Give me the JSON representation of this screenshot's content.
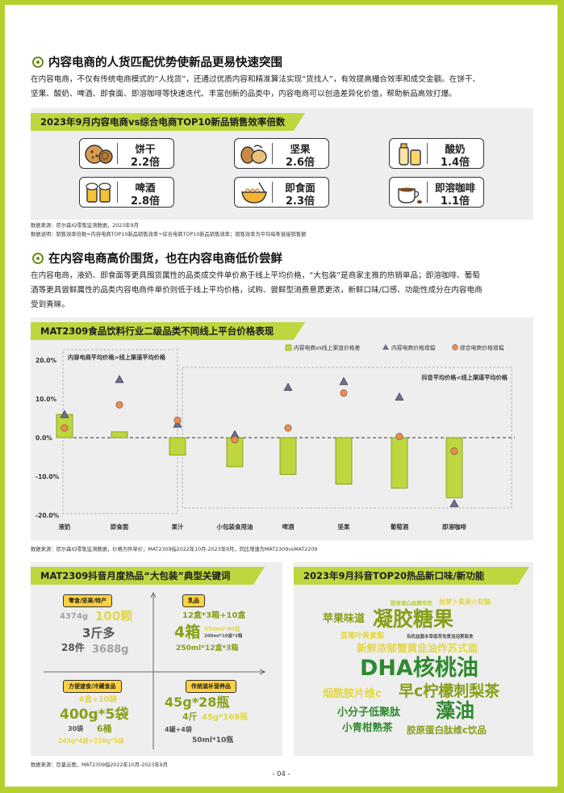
{
  "section1": {
    "title": "内容电商的人货匹配优势使新品更易快速突围",
    "para_line1": "在内容电商，不仅有传统电商模式的“人找货”，还通过优质内容和精准算法实现“货找人”，有效提高撮合效率和成交金额。在饼干、",
    "para_line2": "坚果、酸奶、啤酒、即食面、即溶咖啡等快速迭代、丰富创新的品类中，内容电商可以创造差异化价值，帮助新品高效打爆。",
    "panel_title": "2023年9月内容电商vs综合电商TOP10新品销售效率倍数",
    "cards": [
      {
        "name": "饼干",
        "value": "2.2倍",
        "icon": "cookie-icon"
      },
      {
        "name": "坚果",
        "value": "2.6倍",
        "icon": "nuts-icon"
      },
      {
        "name": "酸奶",
        "value": "1.4倍",
        "icon": "yogurt-icon"
      },
      {
        "name": "啤酒",
        "value": "2.8倍",
        "icon": "beer-icon"
      },
      {
        "name": "即食面",
        "value": "2.3倍",
        "icon": "noodles-icon"
      },
      {
        "name": "即溶咖啡",
        "value": "1.1倍",
        "icon": "coffee-icon"
      }
    ],
    "source": "数据来源：尼尔森IQ零售监测数据，2023年9月",
    "explain": "数据说明：销售效率倍数=内容电商TOP10新品销售效率÷综合电商TOP10新品销售效率；销售效率为平均每条链接销售额"
  },
  "section2": {
    "title": "在内容电商高价围货，也在内容电商低价尝鲜",
    "para_line1": "在内容电商，液奶、即食面等更具囤货属性的品类成交件单价高于线上平均价格，“大包装”是商家主推的热销单品；即溶咖啡、葡萄",
    "para_line2": "酒等更具尝鲜属性的品类内容电商件单价则低于线上平均价格，试购、尝鲜型消费意愿更浓，新鲜口味/口感、功能性成分在内容电商",
    "para_line3": "受到青睐。",
    "chart_title": "MAT2309食品饮料行业二级品类不同线上平台价格表现",
    "source": "数据来源：尼尔森IQ零售监测数据，价格为件单价；MAT2309指2022年10月-2023年9月，同比增速为MAT2309vsMAT2209"
  },
  "chart_data": {
    "type": "bar",
    "categories": [
      "液奶",
      "即食面",
      "果汁",
      "小包装食用油",
      "啤酒",
      "坚果",
      "葡萄酒",
      "即溶咖啡"
    ],
    "ylim": [
      -20,
      20
    ],
    "yticks": [
      "20.0%",
      "10.0%",
      "0.0%",
      "-10.0%",
      "-20.0%"
    ],
    "series": [
      {
        "name": "内容电商vs线上渠道价格差",
        "kind": "bar",
        "color": "#bfd63f",
        "values": [
          6.0,
          1.5,
          -4.5,
          -7.5,
          -9.5,
          -12.0,
          -13.0,
          -15.5
        ]
      },
      {
        "name": "内容电商价格增幅",
        "kind": "triangle",
        "color": "#6b6f8f",
        "values": [
          6.0,
          15.0,
          3.5,
          0.8,
          13.0,
          14.5,
          10.5,
          -17.0
        ]
      },
      {
        "name": "综合电商价格增幅",
        "kind": "circle",
        "color": "#f08a4b",
        "values": [
          2.5,
          8.5,
          4.5,
          -0.5,
          2.5,
          11.5,
          0.3,
          -3.5
        ]
      }
    ],
    "annotation_left": "内容电商平均价格>线上渠道平均价格",
    "annotation_right": "抖音平均价格<线上渠道平均价格"
  },
  "section3": {
    "left_title": "MAT2309抖音月度热品“大包装”典型关键词",
    "right_title": "2023年9月抖音TOP20热品新口味/新功能",
    "quadrants": [
      {
        "label": "零食/坚果/特产",
        "words": [
          "4374g",
          "100颗",
          "3斤多",
          "28件",
          "3688g"
        ]
      },
      {
        "label": "乳品",
        "words": [
          "12盒*3箱+10盒",
          "4箱",
          "250ml*40盒",
          "200ml*10盒*3箱",
          "250ml*12盒*3箱"
        ]
      },
      {
        "label": "方便速食/冷藏食品",
        "words": [
          "6盒+10袋",
          "400g*5袋",
          "30袋",
          "6桶",
          "243g*4袋+220g*5袋"
        ]
      },
      {
        "label": "传统滋补营养品",
        "words": [
          "45g*28瓶",
          "4斤",
          "45g*168瓶",
          "4罐+4袋",
          "50ml*10瓶"
        ]
      }
    ],
    "cloud": [
      "胶原蛋白肽精华饮",
      "胡萝卜素果汁软糖",
      "苹果味道",
      "凝胶糖果",
      "蓝莓叶黄素酯",
      "有机益菌本草植萃免煮泡泡粥面食",
      "新鲜浓郁蟹黄韭油炸苏式面",
      "DHA核桃油",
      "烟酰胺片维c",
      "早c柠檬刺梨茶",
      "小分子低聚肽",
      "藻油",
      "小青柑熟茶",
      "胶原蛋白肽维c饮品"
    ],
    "source": "数据来源：巨量云图，MAT2309指2022年10月-2023年9月"
  },
  "page_number": "- 04 -",
  "colors": {
    "border": "#b5cf2e",
    "accent": "#bfd63f",
    "orange": "#f08a4b",
    "triangle": "#6b6f8f"
  }
}
